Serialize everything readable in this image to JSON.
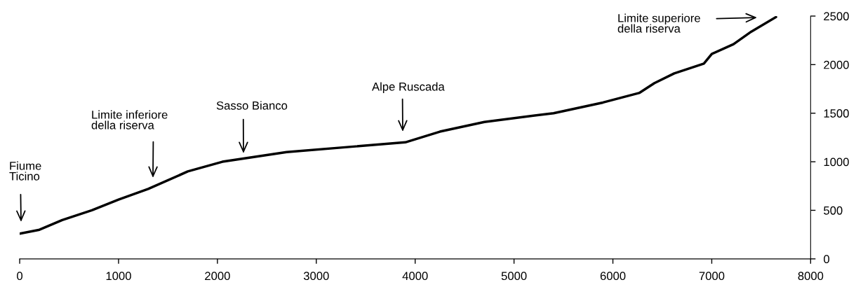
{
  "chart_data": {
    "type": "line",
    "x": [
      0,
      200,
      430,
      730,
      1000,
      1300,
      1700,
      2050,
      2700,
      3900,
      4250,
      4700,
      5400,
      5900,
      6270,
      6420,
      6620,
      6920,
      7000,
      7220,
      7400,
      7650
    ],
    "series": [
      {
        "color": "#000000",
        "values": [
          260,
          300,
          400,
          500,
          610,
          720,
          900,
          1000,
          1100,
          1200,
          1310,
          1410,
          1500,
          1610,
          1710,
          1810,
          1910,
          2010,
          2110,
          2210,
          2340,
          2490
        ]
      }
    ],
    "xlim": [
      0,
      8000
    ],
    "xticks": [
      0,
      1000,
      2000,
      3000,
      4000,
      5000,
      6000,
      7000,
      8000
    ],
    "ylim": [
      0,
      2500
    ],
    "yticks": [
      0,
      500,
      1000,
      1500,
      2000,
      2500
    ],
    "grid": false,
    "legend": false,
    "marker": "none",
    "line_style": "solid",
    "annotations": [
      "Fiume\nTicino",
      "Limite inferiore\ndella riserva",
      "Sasso Bianco",
      "Alpe Ruscada",
      "Limite superiore\ndella riserva"
    ]
  }
}
